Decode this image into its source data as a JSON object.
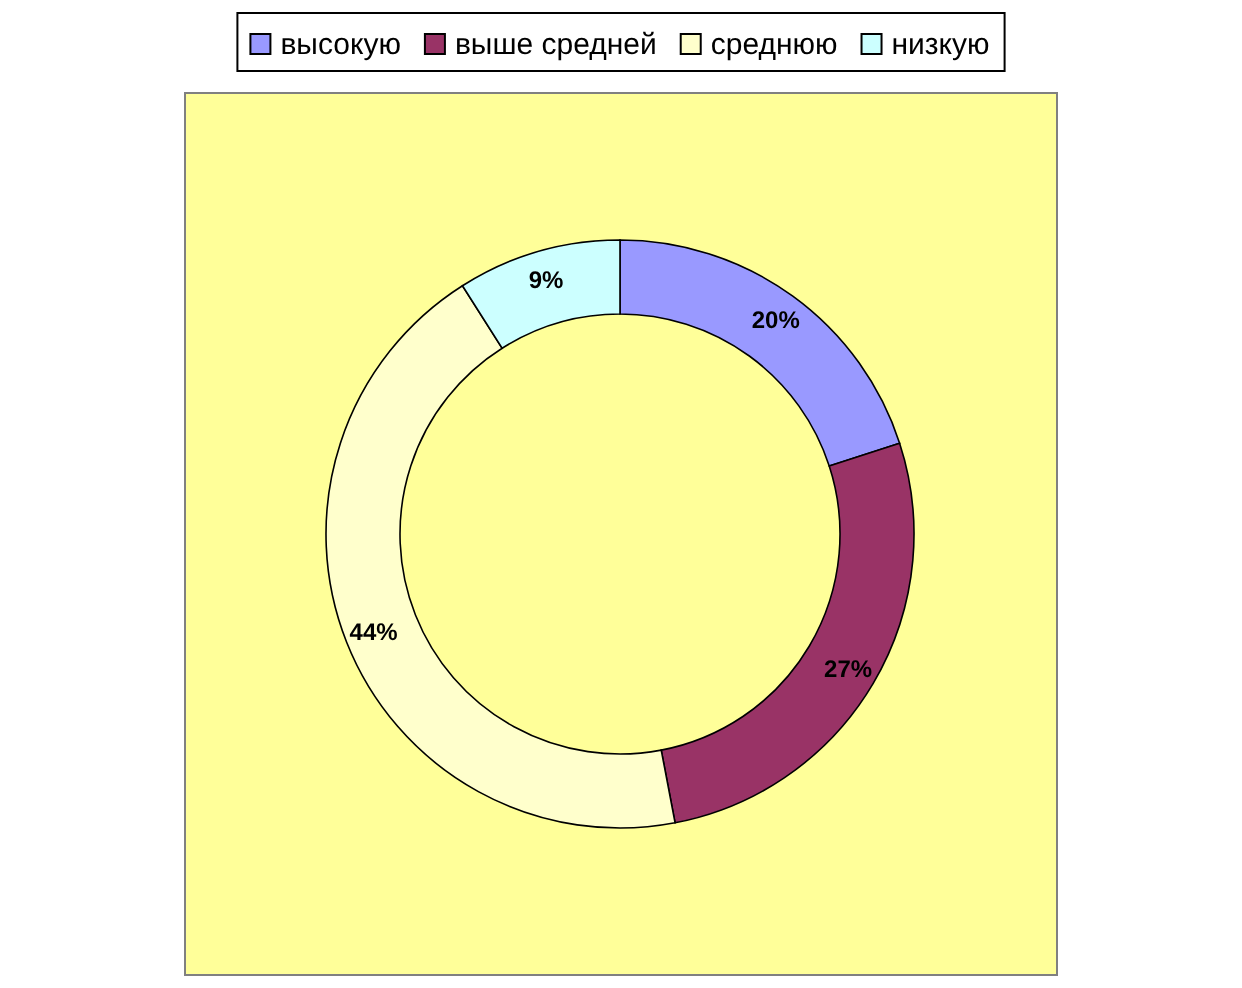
{
  "chart_data": {
    "type": "donut",
    "categories": [
      "высокую",
      "выше средней",
      "среднюю",
      "низкую"
    ],
    "values": [
      20,
      27,
      44,
      9
    ],
    "colors": [
      "#9999ff",
      "#993366",
      "#ffffcc",
      "#ccffff"
    ],
    "value_labels": [
      "20%",
      "27%",
      "44%",
      "9%"
    ],
    "legend": "top"
  }
}
